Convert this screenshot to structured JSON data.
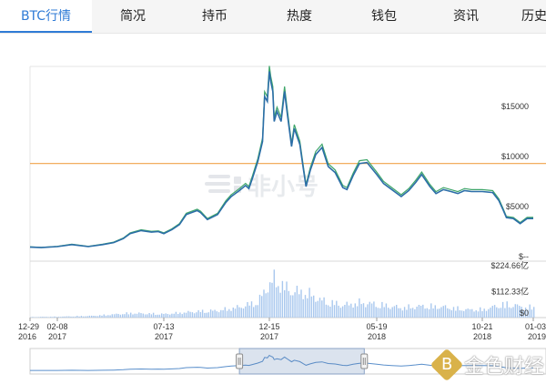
{
  "tabs": [
    {
      "label": "BTC行情",
      "active": true
    },
    {
      "label": "简况",
      "active": false
    },
    {
      "label": "持币",
      "active": false
    },
    {
      "label": "热度",
      "active": false
    },
    {
      "label": "钱包",
      "active": false
    },
    {
      "label": "资讯",
      "active": false
    },
    {
      "label": "历史",
      "active": false
    }
  ],
  "watermark": "非小号",
  "corner_logo": {
    "text": "金色财经",
    "mark": "B"
  },
  "colors": {
    "price_line": "#2c6ea8",
    "price_line_secondary": "#3fa66a",
    "reference_line": "#f0a24a",
    "volume_bars": "#a9c8ee",
    "accent": "#2f7bd6"
  },
  "chart_data": {
    "type": "line",
    "price_axis_labels": [
      "$15000",
      "$10000",
      "$5000",
      "$--"
    ],
    "volume_axis_labels": [
      "$224.66亿",
      "$112.33亿",
      "$0"
    ],
    "ylim": [
      0,
      19000
    ],
    "reference_line_value": 9300,
    "x_tick_labels": [
      {
        "date": "12-29",
        "year": "2016"
      },
      {
        "date": "02-08",
        "year": "2017"
      },
      {
        "date": "07-13",
        "year": "2017"
      },
      {
        "date": "12-15",
        "year": "2017"
      },
      {
        "date": "05-19",
        "year": "2018"
      },
      {
        "date": "10-21",
        "year": "2018"
      },
      {
        "date": "01-03",
        "year": "2019"
      }
    ],
    "series": [
      {
        "x": [
          "2016-12-29",
          "2017-01-15",
          "2017-02-08",
          "2017-03-01",
          "2017-03-25",
          "2017-04-15",
          "2017-05-01",
          "2017-05-15",
          "2017-05-25",
          "2017-06-10",
          "2017-06-25",
          "2017-07-05",
          "2017-07-13",
          "2017-07-25",
          "2017-08-05",
          "2017-08-15",
          "2017-08-31",
          "2017-09-05",
          "2017-09-15",
          "2017-09-30",
          "2017-10-12",
          "2017-10-20",
          "2017-11-01",
          "2017-11-10",
          "2017-11-15",
          "2017-11-20",
          "2017-11-28",
          "2017-12-05",
          "2017-12-08",
          "2017-12-12",
          "2017-12-15",
          "2017-12-17",
          "2017-12-20",
          "2017-12-22",
          "2017-12-26",
          "2018-01-01",
          "2018-01-06",
          "2018-01-10",
          "2018-01-16",
          "2018-01-20",
          "2018-01-28",
          "2018-02-02",
          "2018-02-06",
          "2018-02-12",
          "2018-02-20",
          "2018-03-01",
          "2018-03-10",
          "2018-03-20",
          "2018-03-31",
          "2018-04-06",
          "2018-04-15",
          "2018-04-24",
          "2018-05-05",
          "2018-05-19",
          "2018-05-29",
          "2018-06-10",
          "2018-06-24",
          "2018-07-05",
          "2018-07-15",
          "2018-07-24",
          "2018-08-05",
          "2018-08-14",
          "2018-08-25",
          "2018-09-05",
          "2018-09-15",
          "2018-09-25",
          "2018-10-05",
          "2018-10-21",
          "2018-11-05",
          "2018-11-14",
          "2018-11-20",
          "2018-11-25",
          "2018-12-05",
          "2018-12-15",
          "2018-12-25",
          "2019-01-03"
        ],
        "values": [
          950,
          900,
          1000,
          1200,
          1000,
          1200,
          1400,
          1800,
          2300,
          2600,
          2450,
          2500,
          2300,
          2700,
          3200,
          4200,
          4600,
          4400,
          3700,
          4200,
          5400,
          6000,
          6600,
          7100,
          6800,
          7800,
          9500,
          11500,
          16000,
          15500,
          18500,
          17500,
          16500,
          13500,
          14500,
          13500,
          16500,
          14200,
          11000,
          12800,
          11200,
          8800,
          7000,
          8600,
          10200,
          10900,
          9000,
          8400,
          6900,
          6700,
          8100,
          9300,
          9400,
          8200,
          7300,
          6700,
          6000,
          6600,
          7400,
          8200,
          7000,
          6300,
          6700,
          6500,
          6300,
          6600,
          6500,
          6500,
          6400,
          5600,
          4700,
          3900,
          3800,
          3300,
          3800,
          3800
        ]
      }
    ],
    "volume_ylim": [
      0,
      224.66
    ],
    "volume_unit": "亿",
    "volume_series": {
      "x": [
        "2016-12-29",
        "2017-02-08",
        "2017-04-01",
        "2017-05-25",
        "2017-07-13",
        "2017-08-31",
        "2017-09-30",
        "2017-11-01",
        "2017-11-28",
        "2017-12-08",
        "2017-12-15",
        "2017-12-22",
        "2018-01-06",
        "2018-01-16",
        "2018-02-06",
        "2018-03-01",
        "2018-03-31",
        "2018-04-24",
        "2018-05-19",
        "2018-06-24",
        "2018-07-24",
        "2018-08-25",
        "2018-09-25",
        "2018-10-21",
        "2018-11-20",
        "2018-12-05",
        "2018-12-25",
        "2019-01-03"
      ],
      "values": [
        3,
        5,
        10,
        25,
        20,
        35,
        40,
        60,
        90,
        160,
        190,
        220,
        170,
        150,
        140,
        95,
        70,
        85,
        75,
        55,
        65,
        60,
        45,
        45,
        75,
        70,
        55,
        60
      ]
    },
    "navigator": {
      "selected_from": "2017-11-01",
      "selected_to": "2018-05-01"
    }
  }
}
